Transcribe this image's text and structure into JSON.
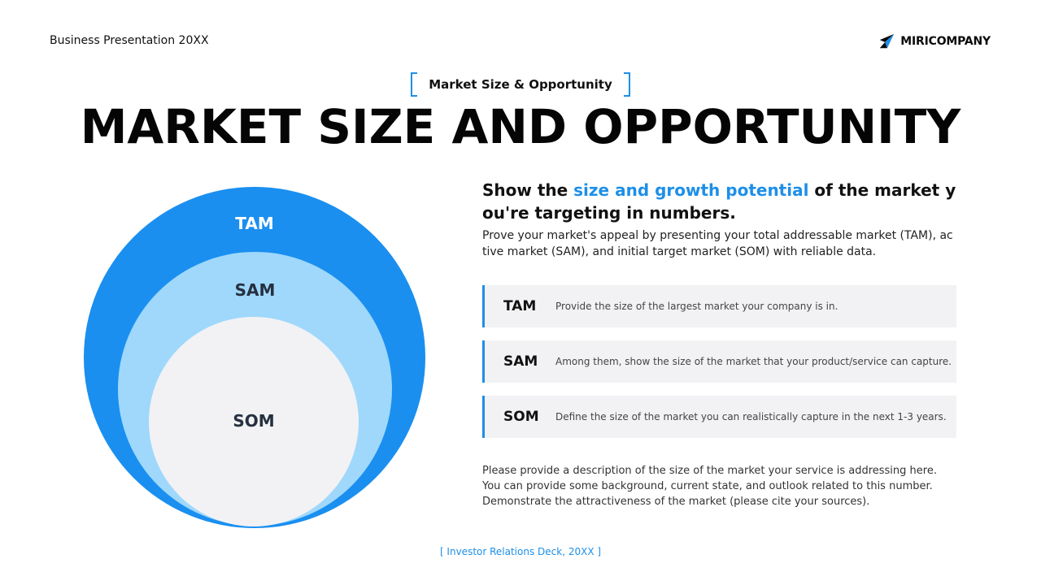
{
  "header": {
    "left_text": "Business Presentation 20XX",
    "logo_text": "MIRICOMPANY",
    "logo_icon": "paper-plane-icon"
  },
  "section_tag": "Market Size & Opportunity",
  "title": "MARKET SIZE AND OPPORTUNITY",
  "diagram": {
    "outer_label": "TAM",
    "middle_label": "SAM",
    "inner_label": "SOM",
    "colors": {
      "outer": "#1a8ff0",
      "middle": "#9fd8fb",
      "inner": "#f2f2f4"
    }
  },
  "headline": {
    "part1": "Show the ",
    "accent": "size and growth potential",
    "part2": " of the market you're targeting in numbers."
  },
  "lead": "Prove your market's appeal by presenting your total addressable market (TAM), active market (SAM), and initial target market (SOM) with reliable data.",
  "rows": [
    {
      "key": "TAM",
      "desc": "Provide the size of the largest market your company is in."
    },
    {
      "key": "SAM",
      "desc": "Among them, show the size of the market that your product/service can capture."
    },
    {
      "key": "SOM",
      "desc": "Define the size of the market you can realistically capture in the next 1-3 years."
    }
  ],
  "footnote": {
    "line1": "Please provide a description of the size of the market your service is addressing here.",
    "line2": "You can provide some background, current state, and outlook related to this number.",
    "line3": "Demonstrate the attractiveness of the market (please cite your sources)."
  },
  "bottom_tag": "[ Investor Relations Deck, 20XX ]",
  "accent_color": "#1d8fe8"
}
